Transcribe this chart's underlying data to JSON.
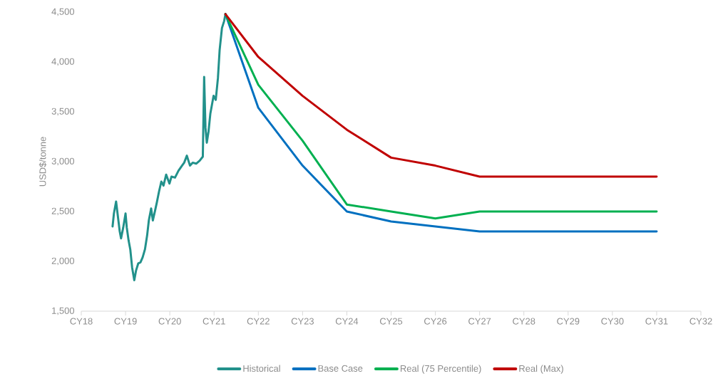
{
  "chart_data": {
    "type": "line",
    "ylabel": "USD$/tonne",
    "xlim": [
      "2018",
      "2032"
    ],
    "ylim": [
      1500,
      4500
    ],
    "xticks": [
      {
        "value": "2018",
        "label": "CY18"
      },
      {
        "value": "2019",
        "label": "CY19"
      },
      {
        "value": "2020",
        "label": "CY20"
      },
      {
        "value": "2021",
        "label": "CY21"
      },
      {
        "value": "2022",
        "label": "CY22"
      },
      {
        "value": "2023",
        "label": "CY23"
      },
      {
        "value": "2024",
        "label": "CY24"
      },
      {
        "value": "2025",
        "label": "CY25"
      },
      {
        "value": "2026",
        "label": "CY26"
      },
      {
        "value": "2027",
        "label": "CY27"
      },
      {
        "value": "2028",
        "label": "CY28"
      },
      {
        "value": "2029",
        "label": "CY29"
      },
      {
        "value": "2030",
        "label": "CY30"
      },
      {
        "value": "2031",
        "label": "CY31"
      },
      {
        "value": "2032",
        "label": "CY32"
      }
    ],
    "yticks": [
      {
        "value": 1500,
        "label": "1,500"
      },
      {
        "value": 2000,
        "label": "2,000"
      },
      {
        "value": 2500,
        "label": "2,500"
      },
      {
        "value": 3000,
        "label": "3,000"
      },
      {
        "value": 3500,
        "label": "3,500"
      },
      {
        "value": 4000,
        "label": "4,000"
      },
      {
        "value": 4500,
        "label": "4,500"
      }
    ],
    "legend": "bottom",
    "grid": false,
    "marker": "none",
    "line_style": "solid",
    "series": [
      {
        "name": "Historical",
        "color": "#22918b",
        "x": [
          "2018-09-16",
          "2018-09-27",
          "2018-10-15",
          "2018-11-03",
          "2018-11-14",
          "2018-11-25",
          "2018-12-13",
          "2019-01-01",
          "2019-01-11",
          "2019-01-26",
          "2019-02-09",
          "2019-02-24",
          "2019-03-14",
          "2019-03-29",
          "2019-04-16",
          "2019-05-04",
          "2019-05-22",
          "2019-06-10",
          "2019-06-28",
          "2019-07-12",
          "2019-07-31",
          "2019-08-14",
          "2019-08-29",
          "2019-09-16",
          "2019-10-04",
          "2019-10-23",
          "2019-11-10",
          "2019-12-02",
          "2019-12-29",
          "2020-01-15",
          "2020-02-13",
          "2020-03-13",
          "2020-04-11",
          "2020-04-29",
          "2020-05-21",
          "2020-06-16",
          "2020-07-08",
          "2020-08-06",
          "2020-09-04",
          "2020-09-30",
          "2020-10-11",
          "2020-10-22",
          "2020-11-02",
          "2020-11-16",
          "2020-12-01",
          "2020-12-28",
          "2021-01-15",
          "2021-02-02",
          "2021-02-16",
          "2021-03-07",
          "2021-03-25",
          "2021-04-05"
        ],
        "values": [
          2350,
          2480,
          2600,
          2410,
          2300,
          2230,
          2340,
          2480,
          2340,
          2210,
          2120,
          1940,
          1810,
          1910,
          1980,
          1990,
          2040,
          2120,
          2260,
          2410,
          2530,
          2410,
          2490,
          2590,
          2700,
          2800,
          2760,
          2870,
          2780,
          2850,
          2840,
          2910,
          2960,
          2990,
          3060,
          2960,
          2990,
          2980,
          3010,
          3050,
          3850,
          3340,
          3190,
          3300,
          3480,
          3660,
          3620,
          3840,
          4120,
          4340,
          4410,
          4480
        ]
      },
      {
        "name": "Base Case",
        "color": "#0070c0",
        "x": [
          "2021-04-05",
          "2022",
          "2023",
          "2024",
          "2025",
          "2026",
          "2027",
          "2028",
          "2029",
          "2030",
          "2031"
        ],
        "values": [
          4480,
          3540,
          2960,
          2500,
          2400,
          2350,
          2300,
          2300,
          2300,
          2300,
          2300
        ]
      },
      {
        "name": "Real (75 Percentile)",
        "color": "#00b050",
        "x": [
          "2021-04-05",
          "2022",
          "2023",
          "2024",
          "2025",
          "2026",
          "2027",
          "2028",
          "2029",
          "2030",
          "2031"
        ],
        "values": [
          4480,
          3770,
          3210,
          2570,
          2500,
          2430,
          2500,
          2500,
          2500,
          2500,
          2500
        ]
      },
      {
        "name": "Real (Max)",
        "color": "#c00000",
        "x": [
          "2021-04-05",
          "2022",
          "2023",
          "2024",
          "2025",
          "2026",
          "2027",
          "2028",
          "2029",
          "2030",
          "2031"
        ],
        "values": [
          4480,
          4050,
          3660,
          3320,
          3040,
          2960,
          2850,
          2850,
          2850,
          2850,
          2850
        ]
      }
    ]
  }
}
